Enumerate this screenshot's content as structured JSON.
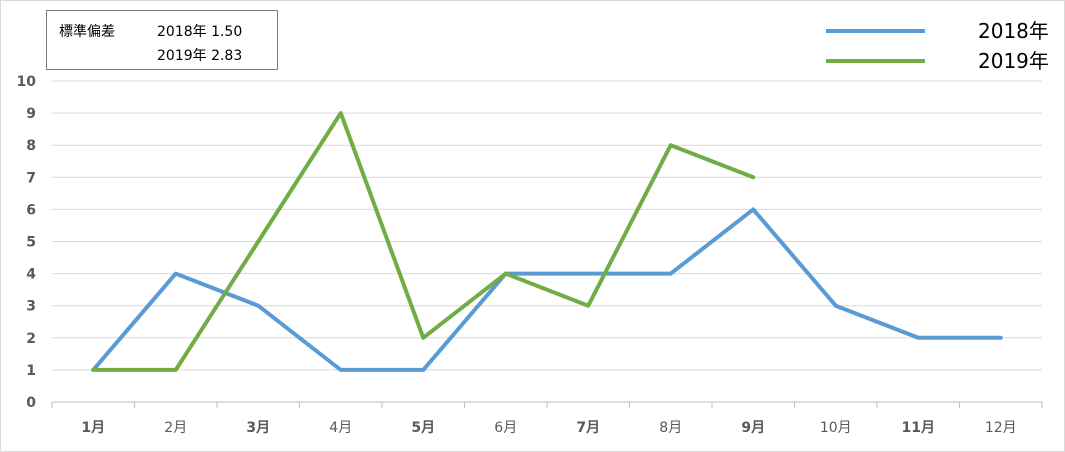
{
  "chart_data": {
    "type": "line",
    "categories": [
      "1月",
      "2月",
      "3月",
      "4月",
      "5月",
      "6月",
      "7月",
      "8月",
      "9月",
      "10月",
      "11月",
      "12月"
    ],
    "series": [
      {
        "name": "2018年",
        "color": "#5b9bd5",
        "values": [
          1,
          4,
          3,
          1,
          1,
          4,
          4,
          4,
          6,
          3,
          2,
          2
        ]
      },
      {
        "name": "2019年",
        "color": "#70ad47",
        "values": [
          1,
          1,
          5,
          9,
          2,
          4,
          3,
          8,
          7,
          null,
          null,
          null
        ]
      }
    ],
    "ylim": [
      0,
      10
    ],
    "yticks": [
      "0",
      "1",
      "2",
      "3",
      "4",
      "5",
      "6",
      "7",
      "8",
      "9",
      "10"
    ],
    "grid": true,
    "legend_position": "top-right",
    "title": "",
    "xlabel": "",
    "ylabel": ""
  },
  "stats_box": {
    "label": "標準偏差",
    "rows": [
      "2018年 1.50",
      "2019年 2.83"
    ]
  }
}
